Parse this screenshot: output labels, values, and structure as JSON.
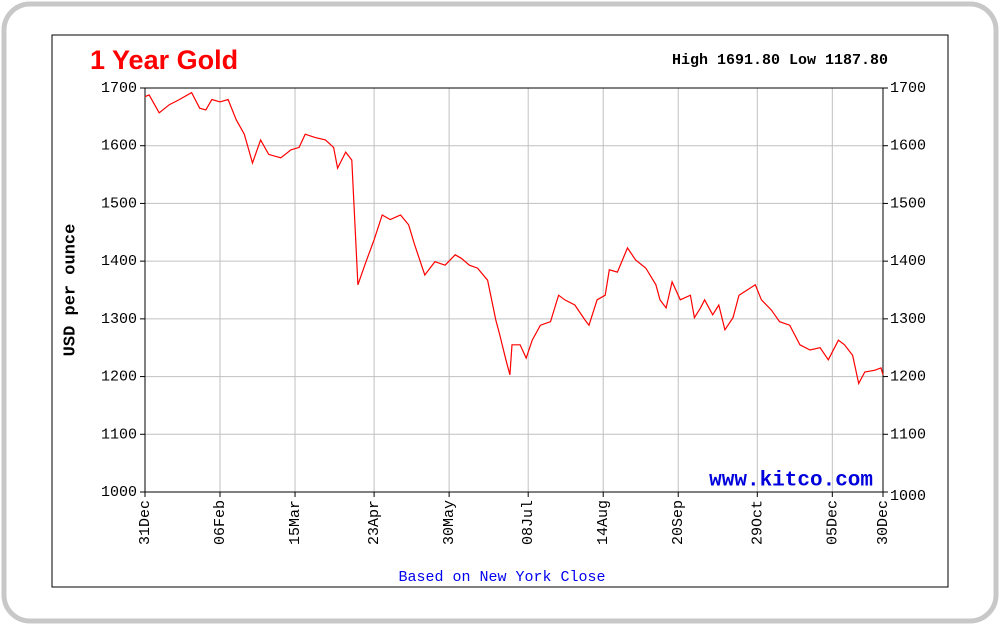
{
  "chart_data": {
    "type": "line",
    "title": "1 Year Gold",
    "subtitle": "High 1691.80 Low 1187.80",
    "y_label": "USD per ounce",
    "x_label": "Based on New York Close",
    "watermark": "www.kitco.com",
    "color": "#ff0000",
    "grid": true,
    "xlim": [
      0,
      364
    ],
    "xticks": [
      {
        "value": 0,
        "label": "31Dec"
      },
      {
        "value": 37,
        "label": "06Feb"
      },
      {
        "value": 74,
        "label": "15Mar"
      },
      {
        "value": 113,
        "label": "23Apr"
      },
      {
        "value": 150,
        "label": "30May"
      },
      {
        "value": 189,
        "label": "08Jul"
      },
      {
        "value": 226,
        "label": "14Aug"
      },
      {
        "value": 263,
        "label": "20Sep"
      },
      {
        "value": 302,
        "label": "29Oct"
      },
      {
        "value": 339,
        "label": "05Dec"
      },
      {
        "value": 364,
        "label": "30Dec"
      }
    ],
    "ylim": [
      1000,
      1700
    ],
    "yticks": [
      1000,
      1100,
      1200,
      1300,
      1400,
      1500,
      1600,
      1700
    ],
    "x": [
      0,
      2,
      7,
      12,
      17,
      23,
      27,
      30,
      33,
      37,
      41,
      45,
      49,
      53,
      57,
      61,
      67,
      72,
      76,
      79,
      84,
      89,
      93,
      95,
      99,
      102,
      105,
      109,
      113,
      117,
      121,
      126,
      130,
      133,
      138,
      143,
      148,
      153,
      156,
      160,
      164,
      169,
      173,
      175,
      178,
      180,
      181,
      185,
      188,
      191,
      195,
      200,
      204,
      207,
      212,
      217,
      219,
      223,
      227,
      229,
      233,
      238,
      242,
      247,
      252,
      254,
      257,
      260,
      264,
      269,
      271,
      274,
      276,
      280,
      283,
      286,
      290,
      293,
      297,
      301,
      304,
      309,
      313,
      318,
      323,
      328,
      333,
      337,
      342,
      345,
      349,
      352,
      355,
      360,
      363,
      364
    ],
    "values": [
      1685,
      1688,
      1657,
      1671,
      1680,
      1692,
      1665,
      1662,
      1680,
      1676,
      1680,
      1645,
      1620,
      1570,
      1610,
      1585,
      1579,
      1593,
      1597,
      1620,
      1614,
      1610,
      1597,
      1561,
      1589,
      1575,
      1359,
      1399,
      1437,
      1480,
      1472,
      1480,
      1463,
      1428,
      1376,
      1399,
      1393,
      1411,
      1405,
      1393,
      1388,
      1367,
      1298,
      1272,
      1229,
      1203,
      1255,
      1255,
      1232,
      1263,
      1289,
      1295,
      1341,
      1333,
      1324,
      1298,
      1289,
      1333,
      1341,
      1385,
      1381,
      1423,
      1402,
      1388,
      1359,
      1333,
      1319,
      1364,
      1333,
      1341,
      1302,
      1319,
      1333,
      1307,
      1324,
      1281,
      1302,
      1341,
      1350,
      1359,
      1333,
      1315,
      1295,
      1289,
      1255,
      1246,
      1250,
      1229,
      1263,
      1255,
      1237,
      1188,
      1208,
      1211,
      1215,
      1203
    ]
  }
}
